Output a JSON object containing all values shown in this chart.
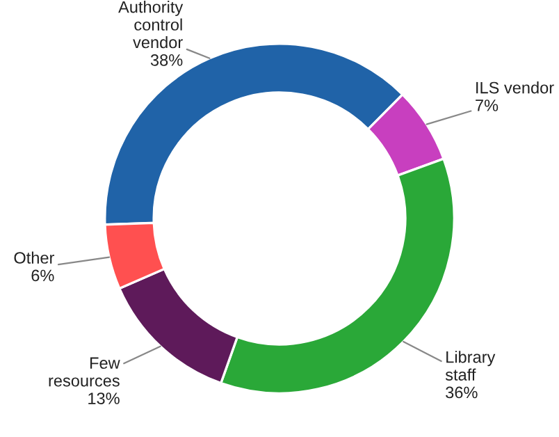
{
  "chart_data": {
    "type": "donut",
    "categories": [
      "Authority\ncontrol\nvendor",
      "ILS vendor",
      "Library\nstaff",
      "Few\nresources",
      "Other"
    ],
    "values": [
      38,
      7,
      36,
      13,
      6
    ],
    "colors": [
      "#2063a8",
      "#c83fbf",
      "#2aa838",
      "#5e1a5a",
      "#ff5050"
    ],
    "value_labels": [
      "38%",
      "7%",
      "36%",
      "13%",
      "6%"
    ],
    "legend": false
  }
}
